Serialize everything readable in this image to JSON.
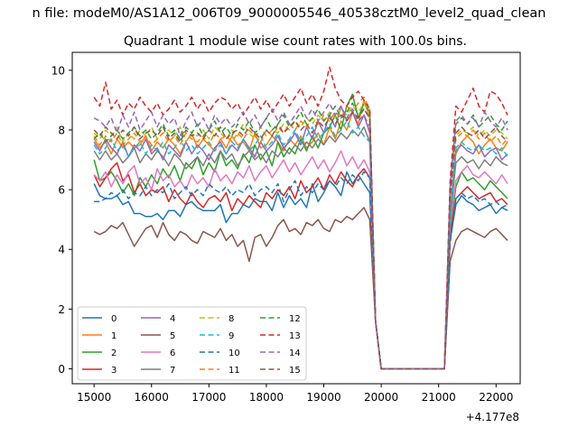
{
  "figure": {
    "suptitle": "n file: modeM0/AS1A12_006T09_9000005546_40538cztM0_level2_quad_clean",
    "title": "Quadrant 1 module wise count rates with 100.0s bins.",
    "offset_label": "+4.177e8"
  },
  "chart_data": {
    "type": "line",
    "title": "Quadrant 1 module wise count rates with 100.0s bins.",
    "xlabel": "",
    "ylabel": "",
    "x_offset": 417700000,
    "xlim": [
      14620,
      22420
    ],
    "ylim": [
      -0.5,
      10.6
    ],
    "xticks": [
      15000,
      16000,
      17000,
      18000,
      19000,
      20000,
      21000,
      22000
    ],
    "yticks": [
      0,
      2,
      4,
      6,
      8,
      10
    ],
    "grid": false,
    "legend": "lower-left, 4 columns",
    "x_start": 15000,
    "x_step": 100,
    "series": [
      {
        "name": "0",
        "color": "#1f77b4",
        "dash": "solid",
        "pre": [
          6.2,
          5.8,
          5.7,
          5.7,
          5.8,
          5.5,
          5.6,
          5.2,
          5.2,
          5.1,
          5.1,
          5.2,
          5.0,
          5.3,
          5.3,
          5.1,
          5.5,
          5.6,
          5.4,
          5.3,
          5.3,
          5.3,
          5.5,
          4.9,
          5.2,
          5.2,
          5.5,
          5.4,
          5.7,
          5.6,
          5.6,
          5.3,
          5.9,
          5.4,
          5.8,
          5.5,
          5.7,
          5.4,
          6.2,
          5.6,
          5.9,
          6.3,
          6.1,
          5.8,
          6.6,
          6.2,
          6.5,
          6.2,
          5.9
        ],
        "post": [
          4.3,
          5.5,
          5.8,
          5.6,
          5.5,
          5.3,
          5.4,
          5.5,
          5.2,
          5.4,
          5.3
        ]
      },
      {
        "name": "1",
        "color": "#ff7f0e",
        "dash": "solid",
        "pre": [
          7.7,
          7.4,
          7.6,
          7.2,
          7.7,
          7.4,
          7.6,
          7.4,
          7.5,
          7.8,
          7.3,
          7.6,
          7.4,
          7.7,
          7.5,
          7.2,
          7.6,
          7.9,
          7.4,
          7.7,
          7.5,
          7.3,
          7.7,
          7.4,
          7.8,
          7.5,
          7.6,
          7.3,
          7.9,
          7.4,
          7.5,
          7.8,
          7.6,
          7.3,
          7.7,
          7.5,
          7.8,
          7.4,
          7.6,
          7.9,
          7.5,
          8.1,
          7.7,
          8.3,
          8.0,
          8.6,
          8.2,
          9.0,
          8.4
        ],
        "post": [
          5.3,
          7.2,
          7.6,
          7.8,
          7.6,
          7.2,
          7.5,
          7.7,
          7.4,
          7.3,
          7.6
        ]
      },
      {
        "name": "2",
        "color": "#2ca02c",
        "dash": "solid",
        "pre": [
          7.0,
          6.3,
          6.4,
          6.6,
          6.3,
          5.9,
          6.2,
          5.8,
          6.4,
          6.1,
          6.5,
          6.2,
          6.7,
          6.4,
          6.8,
          6.3,
          6.9,
          6.7,
          7.1,
          6.5,
          6.9,
          6.6,
          7.3,
          6.8,
          7.0,
          6.7,
          7.2,
          6.9,
          7.5,
          7.0,
          7.3,
          6.8,
          7.6,
          7.1,
          7.4,
          7.2,
          7.7,
          7.3,
          7.8,
          7.4,
          7.9,
          8.1,
          8.5,
          8.0,
          8.8,
          9.2,
          8.4,
          8.9,
          8.6
        ],
        "post": [
          4.6,
          6.1,
          6.6,
          6.3,
          6.4,
          6.2,
          6.0,
          6.3,
          6.1,
          5.9,
          5.7
        ]
      },
      {
        "name": "3",
        "color": "#d62728",
        "dash": "solid",
        "pre": [
          6.5,
          6.1,
          6.4,
          6.7,
          6.9,
          6.3,
          6.5,
          5.9,
          6.2,
          5.8,
          6.0,
          5.9,
          6.1,
          5.6,
          6.0,
          5.7,
          5.5,
          5.9,
          5.6,
          5.4,
          5.7,
          5.8,
          5.6,
          5.9,
          5.3,
          5.7,
          5.5,
          5.8,
          5.6,
          5.4,
          5.9,
          5.7,
          6.0,
          5.8,
          6.1,
          5.7,
          6.3,
          5.9,
          6.1,
          6.4,
          6.0,
          6.5,
          6.2,
          6.6,
          6.3,
          6.1,
          6.5,
          6.7,
          6.4
        ],
        "post": [
          4.4,
          5.7,
          5.9,
          6.1,
          5.9,
          5.7,
          5.8,
          5.9,
          5.6,
          5.7,
          5.5
        ]
      },
      {
        "name": "4",
        "color": "#9467bd",
        "dash": "solid",
        "pre": [
          7.6,
          7.3,
          7.7,
          7.4,
          7.2,
          7.6,
          7.1,
          7.5,
          7.3,
          7.7,
          7.2,
          7.4,
          7.0,
          7.5,
          7.3,
          7.1,
          7.6,
          7.2,
          7.5,
          7.3,
          7.0,
          7.4,
          7.6,
          7.2,
          7.5,
          7.3,
          7.7,
          7.4,
          7.1,
          7.6,
          7.3,
          7.5,
          7.8,
          7.4,
          7.6,
          7.9,
          7.5,
          8.1,
          7.7,
          8.3,
          7.9,
          8.5,
          8.1,
          8.8,
          8.3,
          8.6,
          8.1,
          8.5,
          7.9
        ],
        "post": [
          5.2,
          7.3,
          7.5,
          7.3,
          7.2,
          7.5,
          7.1,
          7.3,
          7.4,
          7.0,
          7.2
        ]
      },
      {
        "name": "5",
        "color": "#8c564b",
        "dash": "solid",
        "pre": [
          4.6,
          4.5,
          4.6,
          4.8,
          4.7,
          4.9,
          4.5,
          4.1,
          4.4,
          4.7,
          4.8,
          4.4,
          4.9,
          4.5,
          4.3,
          4.6,
          4.5,
          4.3,
          4.2,
          4.6,
          4.5,
          4.4,
          4.7,
          4.3,
          4.5,
          4.1,
          4.3,
          3.6,
          4.4,
          4.5,
          4.1,
          4.4,
          4.8,
          5.0,
          4.6,
          4.7,
          4.5,
          4.9,
          4.8,
          5.0,
          4.7,
          4.6,
          5.0,
          4.9,
          5.1,
          5.0,
          5.2,
          5.4,
          5.0
        ],
        "post": [
          3.6,
          4.3,
          4.6,
          4.7,
          4.6,
          4.5,
          4.4,
          4.6,
          4.7,
          4.5,
          4.3
        ]
      },
      {
        "name": "6",
        "color": "#e377c2",
        "dash": "solid",
        "pre": [
          6.5,
          6.3,
          6.6,
          6.1,
          6.5,
          6.2,
          6.6,
          6.8,
          6.2,
          6.4,
          6.0,
          6.7,
          6.3,
          6.5,
          6.1,
          6.3,
          6.0,
          6.5,
          6.2,
          6.4,
          6.1,
          6.7,
          6.3,
          6.5,
          6.2,
          6.6,
          6.4,
          6.8,
          6.3,
          6.6,
          6.8,
          6.4,
          6.7,
          7.0,
          6.6,
          6.9,
          6.5,
          6.8,
          7.1,
          6.7,
          7.0,
          6.6,
          6.9,
          7.3,
          6.8,
          7.1,
          6.7,
          7.0,
          6.6
        ],
        "post": [
          4.8,
          6.3,
          6.6,
          6.8,
          6.5,
          6.4,
          6.6,
          6.4,
          6.2,
          6.5,
          6.2
        ]
      },
      {
        "name": "7",
        "color": "#7f7f7f",
        "dash": "solid",
        "pre": [
          7.3,
          7.0,
          7.3,
          7.0,
          7.2,
          6.9,
          7.1,
          7.4,
          6.9,
          7.2,
          7.0,
          7.3,
          7.1,
          6.8,
          7.2,
          7.0,
          6.7,
          6.9,
          7.1,
          6.8,
          7.2,
          6.9,
          7.3,
          7.0,
          7.2,
          6.8,
          7.1,
          7.3,
          7.0,
          7.2,
          6.9,
          7.3,
          7.1,
          7.4,
          7.2,
          7.5,
          7.3,
          7.6,
          7.4,
          7.7,
          7.5,
          7.8,
          7.6,
          7.9,
          7.7,
          8.0,
          7.8,
          8.1,
          7.6
        ],
        "post": [
          5.0,
          6.9,
          7.1,
          6.9,
          7.0,
          6.7,
          7.0,
          6.8,
          7.1,
          6.9,
          6.8
        ]
      },
      {
        "name": "8",
        "color": "#bcbd22",
        "dash": "dash",
        "pre": [
          7.9,
          7.7,
          8.0,
          7.8,
          8.1,
          7.6,
          7.9,
          7.7,
          8.0,
          7.8,
          8.1,
          7.7,
          7.9,
          8.0,
          7.8,
          8.1,
          7.6,
          7.9,
          7.8,
          8.0,
          7.7,
          8.1,
          7.9,
          7.7,
          8.0,
          7.8,
          8.2,
          7.9,
          7.7,
          8.1,
          7.8,
          8.0,
          7.9,
          8.2,
          8.0,
          8.3,
          8.1,
          8.4,
          8.2,
          8.5,
          8.3,
          8.6,
          8.4,
          8.7,
          8.5,
          8.8,
          8.6,
          8.9,
          8.5
        ],
        "post": [
          5.6,
          7.8,
          8.0,
          7.9,
          8.1,
          7.8,
          8.0,
          7.8,
          8.0,
          7.9,
          7.7
        ]
      },
      {
        "name": "9",
        "color": "#17becf",
        "dash": "dash",
        "pre": [
          7.5,
          7.2,
          7.4,
          7.7,
          7.3,
          7.5,
          7.1,
          7.4,
          7.6,
          7.2,
          7.5,
          7.3,
          7.6,
          7.2,
          7.4,
          7.7,
          7.3,
          7.5,
          7.2,
          7.4,
          7.6,
          7.3,
          7.5,
          7.2,
          7.6,
          7.4,
          7.7,
          7.3,
          7.5,
          7.8,
          7.4,
          7.6,
          7.9,
          7.5,
          7.7,
          8.0,
          7.6,
          7.8,
          8.1,
          7.7,
          7.9,
          8.2,
          7.8,
          8.0,
          8.3,
          7.9,
          8.1,
          7.8,
          7.6
        ],
        "post": [
          5.0,
          7.4,
          7.6,
          7.4,
          7.3,
          7.5,
          7.3,
          7.4,
          7.2,
          7.4,
          7.1
        ]
      },
      {
        "name": "10",
        "color": "#1f77b4",
        "dash": "dash",
        "pre": [
          5.6,
          5.6,
          5.7,
          5.9,
          5.8,
          6.0,
          5.7,
          5.9,
          5.8,
          6.1,
          5.8,
          6.0,
          5.9,
          6.2,
          5.7,
          5.9,
          6.1,
          5.8,
          6.0,
          5.8,
          6.2,
          6.0,
          5.9,
          6.1,
          5.8,
          6.0,
          5.9,
          6.2,
          5.8,
          6.0,
          6.1,
          5.9,
          6.2,
          5.6,
          6.0,
          6.3,
          5.8,
          6.1,
          5.9,
          6.2,
          6.0,
          6.3,
          6.1,
          6.4,
          6.2,
          6.5,
          6.3,
          6.6,
          6.4
        ],
        "post": [
          4.2,
          5.7,
          5.9,
          5.7,
          5.8,
          5.6,
          5.7,
          5.5,
          5.6,
          5.4,
          5.5
        ]
      },
      {
        "name": "11",
        "color": "#ff7f0e",
        "dash": "dash",
        "pre": [
          7.8,
          7.5,
          7.8,
          7.6,
          7.9,
          7.5,
          7.7,
          7.9,
          7.6,
          7.8,
          7.5,
          7.7,
          7.9,
          7.6,
          7.8,
          7.5,
          7.9,
          7.7,
          7.6,
          7.8,
          7.5,
          7.9,
          7.7,
          7.8,
          7.6,
          7.9,
          7.7,
          8.0,
          7.8,
          7.6,
          8.0,
          7.8,
          8.1,
          7.9,
          8.2,
          8.0,
          8.3,
          8.1,
          8.4,
          8.2,
          8.5,
          8.3,
          8.6,
          8.4,
          8.8,
          8.6,
          8.9,
          9.1,
          8.7
        ],
        "post": [
          5.8,
          7.7,
          7.9,
          7.8,
          8.0,
          7.7,
          7.9,
          7.6,
          7.8,
          7.5,
          7.7
        ]
      },
      {
        "name": "12",
        "color": "#2ca02c",
        "dash": "dash",
        "pre": [
          7.7,
          7.9,
          7.6,
          7.8,
          8.0,
          7.7,
          7.9,
          8.1,
          7.8,
          8.0,
          7.7,
          7.9,
          8.2,
          7.8,
          8.0,
          7.7,
          8.1,
          7.9,
          8.2,
          7.8,
          8.0,
          8.3,
          7.9,
          8.1,
          7.8,
          8.2,
          8.0,
          8.3,
          7.9,
          8.1,
          8.4,
          8.0,
          8.2,
          8.5,
          8.1,
          8.3,
          8.6,
          8.2,
          8.4,
          8.7,
          8.3,
          8.5,
          8.8,
          8.4,
          8.6,
          8.9,
          8.5,
          8.7,
          8.4
        ],
        "post": [
          5.9,
          8.2,
          8.4,
          8.2,
          8.5,
          8.1,
          8.3,
          8.5,
          8.2,
          8.0,
          8.3
        ]
      },
      {
        "name": "13",
        "color": "#d62728",
        "dash": "dash",
        "pre": [
          9.1,
          8.8,
          9.6,
          8.7,
          9.0,
          8.5,
          8.9,
          8.7,
          9.1,
          8.8,
          8.6,
          8.9,
          8.5,
          8.7,
          9.0,
          8.6,
          8.8,
          9.1,
          8.7,
          9.0,
          8.6,
          8.9,
          9.1,
          9.0,
          8.7,
          8.9,
          8.5,
          8.8,
          9.1,
          8.7,
          9.0,
          8.6,
          8.9,
          9.2,
          8.8,
          9.1,
          9.4,
          8.9,
          9.2,
          8.8,
          9.3,
          10.1,
          9.4,
          9.0,
          8.8,
          9.1,
          9.3,
          9.0,
          8.7
        ],
        "post": [
          6.3,
          8.8,
          8.6,
          9.0,
          9.4,
          8.8,
          8.6,
          9.3,
          9.2,
          8.9,
          8.5
        ]
      },
      {
        "name": "14",
        "color": "#9467bd",
        "dash": "dash",
        "pre": [
          8.4,
          8.3,
          8.1,
          8.4,
          7.9,
          8.5,
          8.1,
          8.6,
          8.0,
          8.3,
          8.6,
          8.1,
          8.5,
          8.2,
          8.4,
          7.8,
          8.3,
          8.6,
          8.1,
          8.4,
          8.0,
          8.5,
          8.2,
          8.4,
          8.1,
          8.3,
          8.6,
          8.2,
          8.5,
          8.1,
          8.4,
          8.7,
          8.3,
          8.6,
          8.2,
          8.5,
          8.8,
          8.4,
          8.7,
          8.3,
          8.6,
          8.9,
          8.5,
          8.8,
          8.4,
          8.7,
          8.3,
          8.5,
          8.1
        ],
        "post": [
          6.1,
          8.3,
          8.5,
          8.2,
          8.4,
          8.1,
          8.6,
          8.3,
          8.1,
          8.4,
          8.0
        ]
      },
      {
        "name": "15",
        "color": "#8c564b",
        "dash": "dash",
        "pre": [
          8.0,
          7.8,
          8.1,
          7.9,
          7.7,
          8.0,
          7.8,
          8.1,
          7.7,
          7.9,
          8.0,
          7.8,
          8.1,
          7.7,
          7.9,
          7.6,
          8.0,
          7.8,
          7.9,
          7.7,
          8.0,
          7.8,
          8.1,
          7.7,
          7.9,
          8.0,
          7.8,
          8.1,
          7.9,
          7.7,
          8.0,
          7.8,
          8.2,
          7.9,
          8.1,
          8.3,
          8.0,
          8.2,
          7.9,
          8.3,
          8.1,
          8.4,
          8.2,
          8.5,
          8.3,
          8.6,
          8.4,
          8.7,
          8.4
        ],
        "post": [
          5.7,
          7.9,
          8.1,
          7.9,
          7.8,
          8.0,
          7.7,
          7.9,
          8.1,
          7.8,
          7.6
        ]
      }
    ]
  }
}
